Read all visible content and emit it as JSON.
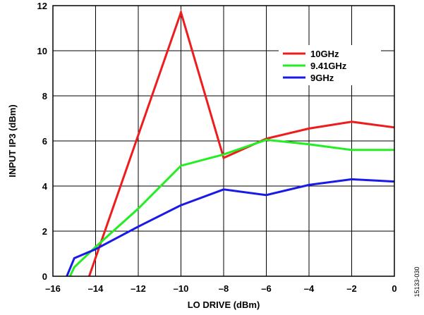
{
  "chart_data": {
    "type": "line",
    "xlabel": "LO DRIVE (dBm)",
    "ylabel": "INPUT IP3 (dBm)",
    "xlim": [
      -16,
      0
    ],
    "ylim": [
      0,
      12
    ],
    "x_ticks": [
      "–16",
      "–14",
      "–12",
      "–10",
      "–8",
      "–6",
      "–4",
      "–2",
      "0"
    ],
    "y_ticks": [
      "0",
      "2",
      "4",
      "6",
      "8",
      "10",
      "12"
    ],
    "grid": true,
    "legend_position": "top-right",
    "series": [
      {
        "name": "10GHz",
        "color": "#ee1c1c",
        "points": [
          [
            -14.3,
            0
          ],
          [
            -10,
            11.7
          ],
          [
            -8,
            5.25
          ],
          [
            -6,
            6.1
          ],
          [
            -4,
            6.55
          ],
          [
            -2,
            6.85
          ],
          [
            0,
            6.6
          ]
        ]
      },
      {
        "name": "9.41GHz",
        "color": "#22ee22",
        "points": [
          [
            -15.2,
            0
          ],
          [
            -15,
            0.4
          ],
          [
            -14,
            1.3
          ],
          [
            -12,
            3.0
          ],
          [
            -10,
            4.9
          ],
          [
            -8,
            5.4
          ],
          [
            -6,
            6.05
          ],
          [
            -4,
            5.85
          ],
          [
            -2,
            5.6
          ],
          [
            0,
            5.6
          ]
        ]
      },
      {
        "name": "9GHz",
        "color": "#1a1ae8",
        "points": [
          [
            -15.35,
            0
          ],
          [
            -15,
            0.8
          ],
          [
            -14,
            1.2
          ],
          [
            -12,
            2.2
          ],
          [
            -10,
            3.15
          ],
          [
            -8,
            3.85
          ],
          [
            -6,
            3.6
          ],
          [
            -4,
            4.05
          ],
          [
            -2,
            4.3
          ],
          [
            0,
            4.2
          ]
        ]
      }
    ]
  },
  "figure_id": "15133-030"
}
